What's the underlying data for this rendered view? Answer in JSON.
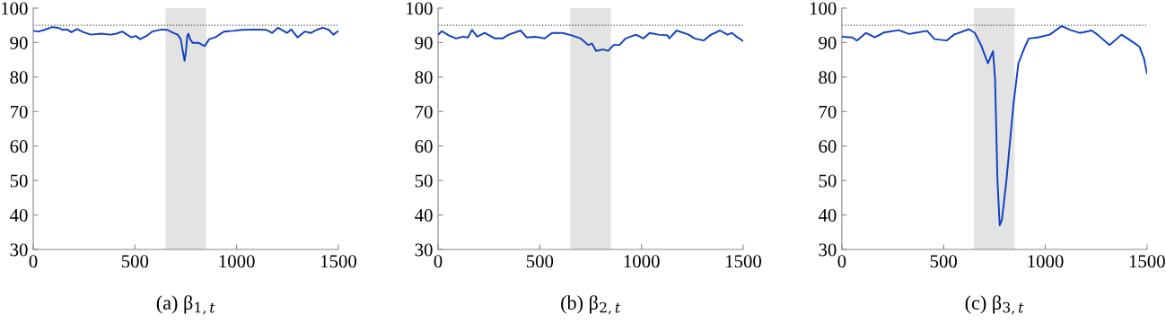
{
  "chart_data": [
    {
      "type": "line",
      "title": "(a) β$_{1,t}$",
      "xlim": [
        0,
        1500
      ],
      "ylim": [
        30,
        100
      ],
      "xticks": [
        0,
        500,
        1000,
        1500
      ],
      "yticks": [
        30,
        40,
        50,
        60,
        70,
        80,
        90,
        100
      ],
      "grid": false,
      "line_style": "solid",
      "ref_lines": [
        {
          "axis": "y",
          "value": 95,
          "color": "#555555",
          "line_style": "dotted"
        }
      ],
      "bands": [
        {
          "axis": "x",
          "from": 650,
          "to": 850,
          "color": "#e3e3e3"
        }
      ],
      "series": [
        {
          "color": "#1040c0",
          "x": [
            0,
            26,
            56,
            93,
            122,
            144,
            166,
            188,
            215,
            247,
            284,
            335,
            379,
            409,
            438,
            482,
            504,
            526,
            556,
            585,
            629,
            659,
            688,
            710,
            725,
            735,
            744,
            751,
            757,
            763,
            771,
            784,
            813,
            843,
            865,
            894,
            938,
            982,
            1026,
            1085,
            1144,
            1174,
            1203,
            1247,
            1269,
            1299,
            1335,
            1365,
            1394,
            1424,
            1453,
            1475,
            1500
          ],
          "values": [
            93.4,
            93.2,
            93.7,
            94.5,
            94.3,
            93.7,
            93.8,
            93,
            93.9,
            93,
            92.3,
            92.6,
            92.3,
            92.6,
            93.2,
            91.5,
            91.9,
            91,
            91.9,
            93.2,
            93.8,
            93.7,
            92.8,
            92.3,
            91,
            87.6,
            84.7,
            87.6,
            91.9,
            92.6,
            91,
            89.9,
            89.9,
            89,
            91,
            91.5,
            93.2,
            93.4,
            93.7,
            93.8,
            93.7,
            92.8,
            94.3,
            92.8,
            93.8,
            91.5,
            93.2,
            92.8,
            93.7,
            94.3,
            93.7,
            92.3,
            93.4
          ]
        }
      ]
    },
    {
      "type": "line",
      "title": "(b) β$_{2,t}$",
      "xlim": [
        0,
        1500
      ],
      "ylim": [
        30,
        100
      ],
      "xticks": [
        0,
        500,
        1000,
        1500
      ],
      "yticks": [
        30,
        40,
        50,
        60,
        70,
        80,
        90,
        100
      ],
      "grid": false,
      "line_style": "solid",
      "ref_lines": [
        {
          "axis": "y",
          "value": 95,
          "color": "#555555",
          "line_style": "dotted"
        }
      ],
      "bands": [
        {
          "axis": "x",
          "from": 650,
          "to": 850,
          "color": "#e3e3e3"
        }
      ],
      "series": [
        {
          "color": "#1040c0",
          "x": [
            0,
            19,
            52,
            88,
            125,
            147,
            167,
            192,
            229,
            280,
            317,
            347,
            406,
            435,
            479,
            524,
            560,
            612,
            656,
            701,
            737,
            757,
            777,
            811,
            836,
            863,
            892,
            922,
            973,
            1010,
            1040,
            1084,
            1128,
            1136,
            1173,
            1232,
            1261,
            1305,
            1342,
            1386,
            1423,
            1445,
            1468,
            1500
          ],
          "values": [
            92.3,
            93.3,
            92.1,
            91.2,
            91.7,
            91.5,
            93.7,
            91.7,
            92.8,
            91.2,
            91.2,
            92.3,
            93.5,
            91.5,
            91.7,
            91.2,
            92.8,
            92.8,
            92.1,
            91.2,
            89.3,
            89.7,
            87.6,
            88,
            87.6,
            89.3,
            89.3,
            91.2,
            92.3,
            91.2,
            92.8,
            92.3,
            92.1,
            91.2,
            93.5,
            92.3,
            91.2,
            90.6,
            92.3,
            93.5,
            92.3,
            92.8,
            91.7,
            90.4
          ]
        }
      ]
    },
    {
      "type": "line",
      "title": "(c) β$_{3,t}$",
      "xlim": [
        0,
        1500
      ],
      "ylim": [
        30,
        100
      ],
      "xticks": [
        0,
        500,
        1000,
        1500
      ],
      "yticks": [
        30,
        40,
        50,
        60,
        70,
        80,
        90,
        100
      ],
      "grid": false,
      "line_style": "solid",
      "ref_lines": [
        {
          "axis": "y",
          "value": 95,
          "color": "#555555",
          "line_style": "dotted"
        }
      ],
      "bands": [
        {
          "axis": "x",
          "from": 650,
          "to": 850,
          "color": "#e3e3e3"
        }
      ],
      "series": [
        {
          "color": "#1040c0",
          "x": [
            0,
            51,
            74,
            118,
            162,
            206,
            279,
            331,
            419,
            456,
            515,
            551,
            625,
            654,
            684,
            718,
            743,
            753,
            765,
            776,
            787,
            809,
            843,
            868,
            897,
            919,
            963,
            1022,
            1081,
            1125,
            1169,
            1228,
            1257,
            1316,
            1375,
            1419,
            1463,
            1485,
            1500
          ],
          "values": [
            91.7,
            91.5,
            90.6,
            92.8,
            91.5,
            92.9,
            93.6,
            92.5,
            93.4,
            91,
            90.6,
            92.3,
            93.9,
            92.8,
            89.3,
            84,
            87.5,
            79.7,
            50,
            37,
            38.7,
            50,
            71.8,
            84,
            88.4,
            91.2,
            91.5,
            92.3,
            94.8,
            93.6,
            92.8,
            93.5,
            92.3,
            89.3,
            92.3,
            90.6,
            88.8,
            85.4,
            81
          ]
        }
      ]
    }
  ]
}
